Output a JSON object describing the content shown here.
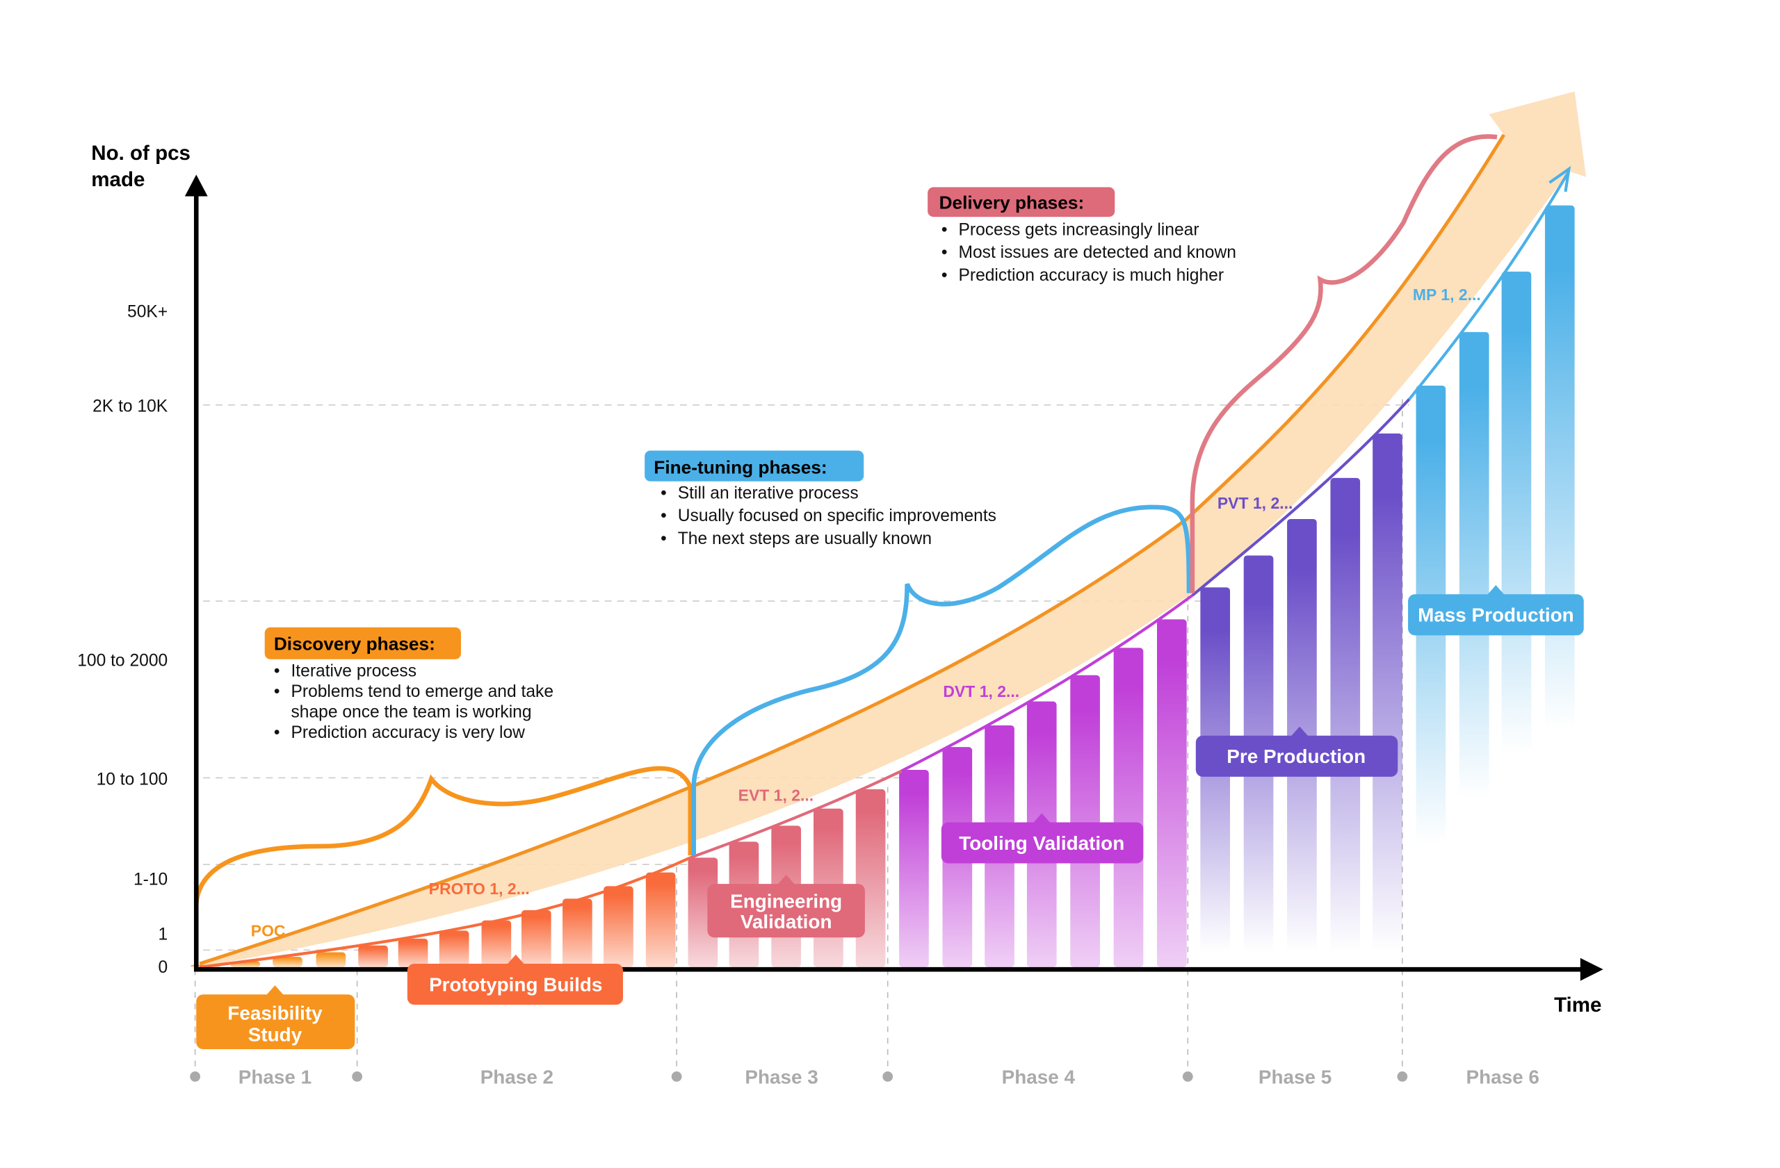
{
  "axes": {
    "y_title": [
      "No. of pcs",
      "made"
    ],
    "x_title": "Time",
    "y_ticks": [
      "50K+",
      "2K to 10K",
      "100 to 2000",
      "10 to 100",
      "1-10",
      "1",
      "0"
    ]
  },
  "phases": [
    "Phase 1",
    "Phase 2",
    "Phase 3",
    "Phase 4",
    "Phase 5",
    "Phase 6"
  ],
  "iterations": [
    "POC",
    "PROTO 1, 2...",
    "EVT 1, 2...",
    "DVT 1, 2...",
    "PVT 1, 2...",
    "MP 1, 2..."
  ],
  "stages": {
    "feasibility": [
      "Feasibility",
      "Study"
    ],
    "prototyping": "Prototyping Builds",
    "engineering": [
      "Engineering",
      "Validation"
    ],
    "tooling": "Tooling Validation",
    "preproduction": "Pre Production",
    "mass": "Mass Production"
  },
  "callouts": {
    "discovery": {
      "title": "Discovery phases:",
      "bullets": [
        "Iterative process",
        "Problems tend to emerge and take",
        "shape once the team is working",
        "Prediction accuracy is very low"
      ]
    },
    "finetuning": {
      "title": "Fine-tuning phases:",
      "bullets": [
        "Still an iterative process",
        "Usually focused on specific improvements",
        "The next steps are usually known"
      ]
    },
    "delivery": {
      "title": "Delivery phases:",
      "bullets": [
        "Process gets increasingly linear",
        "Most issues are detected and known",
        "Prediction accuracy is much higher"
      ]
    }
  },
  "colors": {
    "phase1": "#F7941D",
    "phase2": "#F96B3B",
    "phase3": "#E0697A",
    "phase4": "#C03FD8",
    "phase5": "#6B4FC8",
    "phase6": "#4BB0E8",
    "band": "#FDDDB5"
  }
}
